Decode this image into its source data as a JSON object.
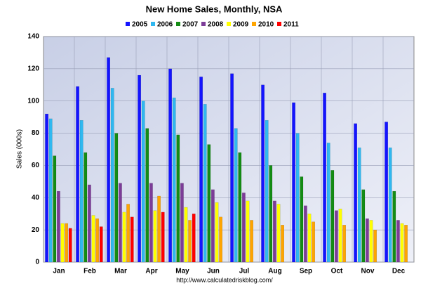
{
  "chart_data": {
    "type": "bar",
    "title": "New Home Sales, Monthly, NSA",
    "y_label": "Sales (000s)",
    "footer": "http://www.calculatedriskblog.com/",
    "categories": [
      "Jan",
      "Feb",
      "Mar",
      "Apr",
      "May",
      "Jun",
      "Jul",
      "Aug",
      "Sep",
      "Oct",
      "Nov",
      "Dec"
    ],
    "series": [
      {
        "name": "2005",
        "color": "#1414ff",
        "values": [
          92,
          109,
          127,
          116,
          120,
          115,
          117,
          110,
          99,
          105,
          86,
          87
        ]
      },
      {
        "name": "2006",
        "color": "#30b8f0",
        "values": [
          89,
          88,
          108,
          100,
          102,
          98,
          83,
          88,
          80,
          74,
          71,
          71
        ]
      },
      {
        "name": "2007",
        "color": "#148c14",
        "values": [
          66,
          68,
          80,
          83,
          79,
          73,
          68,
          60,
          53,
          57,
          45,
          44
        ]
      },
      {
        "name": "2008",
        "color": "#7c3c98",
        "values": [
          44,
          48,
          49,
          49,
          49,
          45,
          43,
          38,
          35,
          32,
          27,
          26
        ]
      },
      {
        "name": "2009",
        "color": "#ffff00",
        "values": [
          24,
          29,
          31,
          32,
          34,
          37,
          38,
          36,
          30,
          33,
          26,
          24
        ]
      },
      {
        "name": "2010",
        "color": "#ffa500",
        "values": [
          24,
          27,
          36,
          41,
          26,
          28,
          26,
          23,
          25,
          23,
          20,
          23
        ]
      },
      {
        "name": "2011",
        "color": "#ff0000",
        "values": [
          21,
          22,
          28,
          31,
          30,
          null,
          null,
          null,
          null,
          null,
          null,
          null
        ]
      }
    ],
    "ylim": [
      0,
      140
    ],
    "yticks": [
      0,
      20,
      40,
      60,
      80,
      100,
      120,
      140
    ],
    "grid": true
  }
}
